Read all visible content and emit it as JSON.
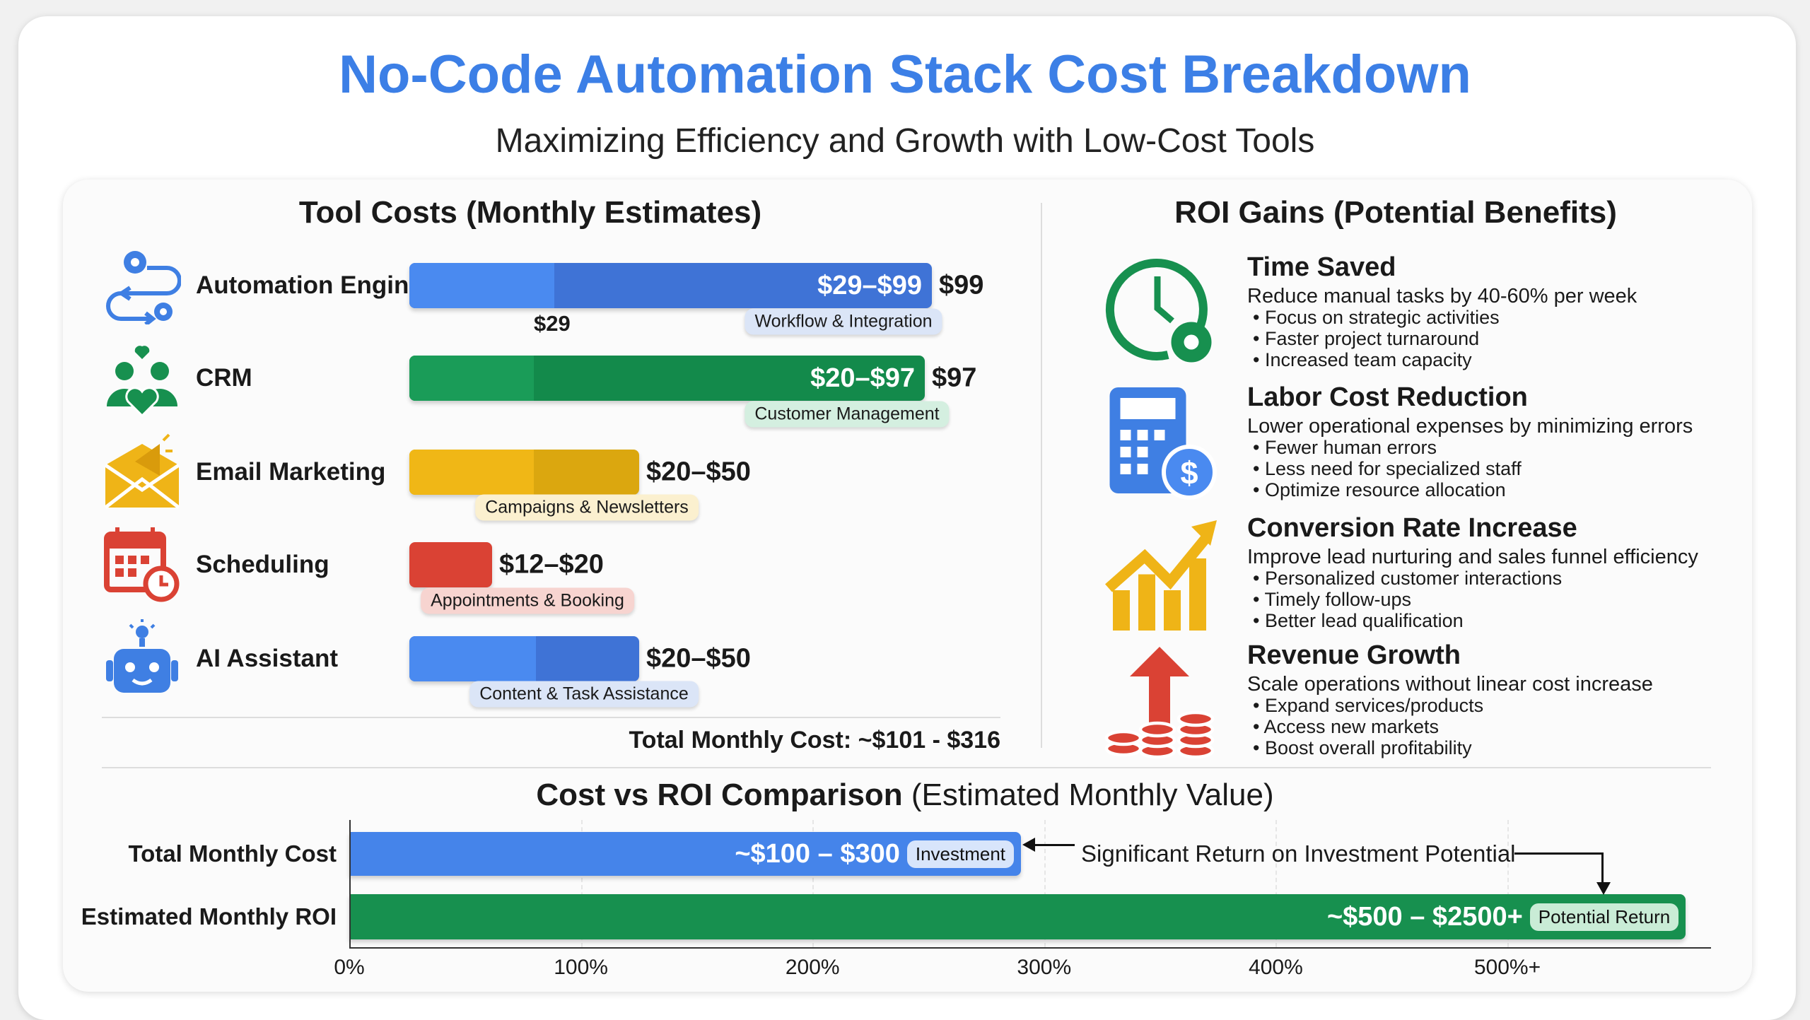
{
  "header": {
    "title": "No-Code Automation Stack Cost Breakdown",
    "subtitle": "Maximizing Efficiency and Growth with Low-Cost Tools"
  },
  "tools": {
    "heading": "Tool Costs (Monthly Estimates)",
    "items": [
      {
        "name": "Automation Engine",
        "range": "$29–$99",
        "max_label": "$99",
        "min_label": "$29",
        "tag": "Workflow & Integration",
        "color": "#3f7fe3",
        "icon": "gears-loop-icon"
      },
      {
        "name": "CRM",
        "range": "$20–$97",
        "max_label": "$97",
        "tag": "Customer Management",
        "color": "#138a4b",
        "icon": "people-heart-icon"
      },
      {
        "name": "Email Marketing",
        "range": "$20–$50",
        "tag": "Campaigns & Newsletters",
        "color": "#efb417",
        "icon": "envelope-megaphone-icon"
      },
      {
        "name": "Scheduling",
        "range": "$12–$20",
        "tag": "Appointments & Booking",
        "color": "#da4234",
        "icon": "calendar-clock-icon"
      },
      {
        "name": "AI Assistant",
        "range": "$20–$50",
        "tag": "Content & Task Assistance",
        "color": "#3f7fe3",
        "icon": "robot-icon"
      }
    ],
    "total": "Total Monthly Cost: ~$101 - $316"
  },
  "roi": {
    "heading": "ROI Gains (Potential Benefits)",
    "items": [
      {
        "title": "Time Saved",
        "desc": "Reduce manual tasks by 40-60% per week",
        "bullets": [
          "Focus on strategic activities",
          "Faster project turnaround",
          "Increased team capacity"
        ],
        "icon": "clock-gear-icon"
      },
      {
        "title": "Labor Cost Reduction",
        "desc": "Lower operational expenses by minimizing errors",
        "bullets": [
          "Fewer human errors",
          "Less need for specialized staff",
          "Optimize resource allocation"
        ],
        "icon": "calculator-dollar-icon"
      },
      {
        "title": "Conversion Rate Increase",
        "desc": "Improve lead nurturing and sales funnel efficiency",
        "bullets": [
          "Personalized customer interactions",
          "Timely follow-ups",
          "Better lead qualification"
        ],
        "icon": "trend-up-icon"
      },
      {
        "title": "Revenue Growth",
        "desc": "Scale operations without linear cost increase",
        "bullets": [
          "Expand services/products",
          "Access new markets",
          "Boost overall profitability"
        ],
        "icon": "coins-arrow-icon"
      }
    ]
  },
  "chart_data": {
    "type": "bar",
    "title": "Cost vs ROI Comparison",
    "subtitle": "(Estimated Monthly Value)",
    "categories": [
      "Total Monthly Cost",
      "Estimated Monthly ROI"
    ],
    "values": [
      290,
      577
    ],
    "value_labels": [
      "~$100 – $300",
      "~$500 – $2500+"
    ],
    "tags": [
      "Investment",
      "Potential Return"
    ],
    "colors": [
      "#4584ea",
      "#17904f"
    ],
    "xticks": [
      "0%",
      "100%",
      "200%",
      "300%",
      "400%",
      "500%+"
    ],
    "xlim": [
      0,
      590
    ],
    "annotation": "Significant Return on Investment Potential"
  }
}
